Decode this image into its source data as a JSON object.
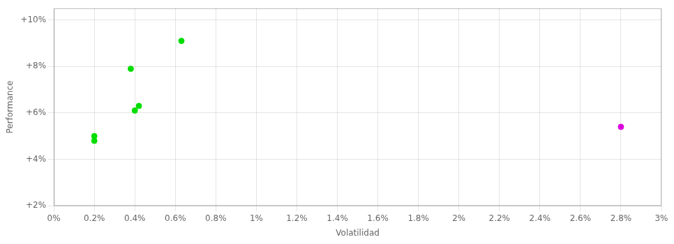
{
  "chart_data": {
    "type": "scatter",
    "xlabel": "Volatilidad",
    "ylabel": "Performance",
    "series": [
      {
        "color": "#00dd00",
        "marker": "circle",
        "x": [
          0.002,
          0.002,
          0.0038,
          0.004,
          0.0042,
          0.0063
        ],
        "values": [
          0.048,
          0.05,
          0.079,
          0.061,
          0.063,
          0.091
        ]
      },
      {
        "color": "#dd00dd",
        "marker": "circle",
        "x": [
          0.028
        ],
        "values": [
          0.054
        ]
      }
    ],
    "xlim": [
      0.0,
      0.03
    ],
    "ylim": [
      0.02,
      0.105
    ],
    "xticks": [
      {
        "value": 0.0,
        "label": "0%"
      },
      {
        "value": 0.002,
        "label": "0.2%"
      },
      {
        "value": 0.004,
        "label": "0.4%"
      },
      {
        "value": 0.006,
        "label": "0.6%"
      },
      {
        "value": 0.008,
        "label": "0.8%"
      },
      {
        "value": 0.01,
        "label": "1%"
      },
      {
        "value": 0.012,
        "label": "1.2%"
      },
      {
        "value": 0.014,
        "label": "1.4%"
      },
      {
        "value": 0.016,
        "label": "1.6%"
      },
      {
        "value": 0.018,
        "label": "1.8%"
      },
      {
        "value": 0.02,
        "label": "2%"
      },
      {
        "value": 0.022,
        "label": "2.2%"
      },
      {
        "value": 0.024,
        "label": "2.4%"
      },
      {
        "value": 0.026,
        "label": "2.6%"
      },
      {
        "value": 0.028,
        "label": "2.8%"
      },
      {
        "value": 0.03,
        "label": "3%"
      }
    ],
    "yticks": [
      {
        "value": 0.02,
        "label": "+2%"
      },
      {
        "value": 0.04,
        "label": "+4%"
      },
      {
        "value": 0.06,
        "label": "+6%"
      },
      {
        "value": 0.08,
        "label": "+8%"
      },
      {
        "value": 0.1,
        "label": "+10%"
      }
    ],
    "grid": true
  }
}
